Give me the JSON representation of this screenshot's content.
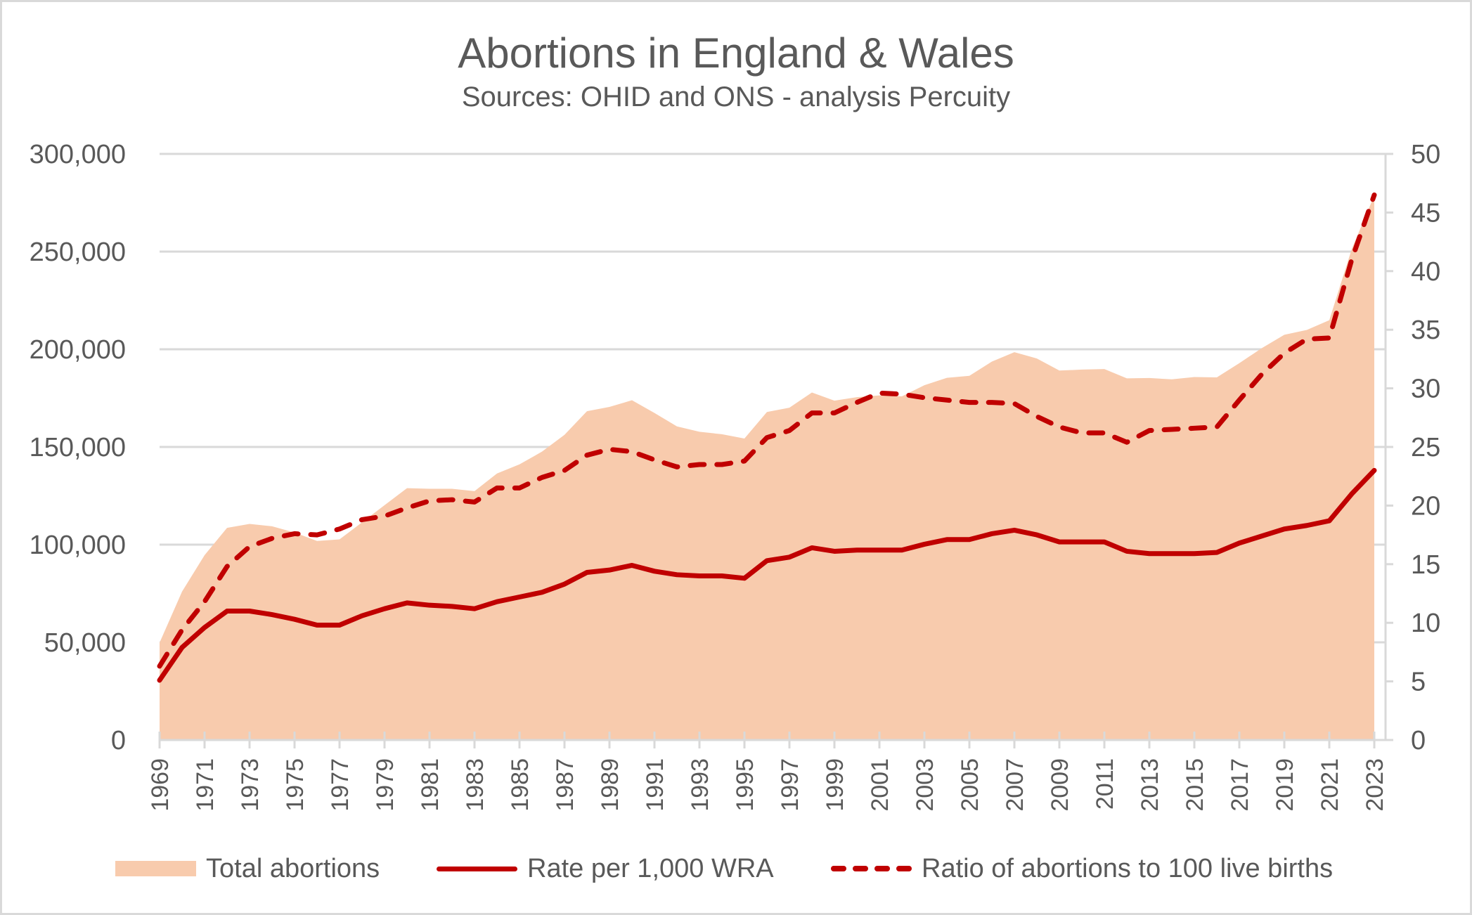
{
  "chart_data": {
    "type": "area+line",
    "title": "Abortions in England & Wales",
    "subtitle": "Sources: OHID and ONS - analysis Percuity",
    "x": [
      1969,
      1970,
      1971,
      1972,
      1973,
      1974,
      1975,
      1976,
      1977,
      1978,
      1979,
      1980,
      1981,
      1982,
      1983,
      1984,
      1985,
      1986,
      1987,
      1988,
      1989,
      1990,
      1991,
      1992,
      1993,
      1994,
      1995,
      1996,
      1997,
      1998,
      1999,
      2000,
      2001,
      2002,
      2003,
      2004,
      2005,
      2006,
      2007,
      2008,
      2009,
      2010,
      2011,
      2012,
      2013,
      2014,
      2015,
      2016,
      2017,
      2018,
      2019,
      2020,
      2021,
      2022,
      2023
    ],
    "x_tick_labels": [
      "1969",
      "1971",
      "1973",
      "1975",
      "1977",
      "1979",
      "1981",
      "1983",
      "1985",
      "1987",
      "1989",
      "1991",
      "1993",
      "1995",
      "1997",
      "1999",
      "2001",
      "2003",
      "2005",
      "2007",
      "2009",
      "2011",
      "2013",
      "2015",
      "2017",
      "2019",
      "2021",
      "2023"
    ],
    "y_left": {
      "range": [
        0,
        300000
      ],
      "ticks": [
        0,
        50000,
        100000,
        150000,
        200000,
        250000,
        300000
      ],
      "tick_labels": [
        "0",
        "50,000",
        "100,000",
        "150,000",
        "200,000",
        "250,000",
        "300,000"
      ],
      "grid": true
    },
    "y_right": {
      "range": [
        0,
        50
      ],
      "ticks": [
        0,
        5,
        10,
        15,
        20,
        25,
        30,
        35,
        40,
        45,
        50
      ],
      "tick_labels": [
        "0",
        "5",
        "10",
        "15",
        "20",
        "25",
        "30",
        "35",
        "40",
        "45",
        "50"
      ]
    },
    "legend_position": "bottom",
    "series": [
      {
        "name": "Total abortions",
        "kind": "area",
        "axis": "left",
        "color": "#F8CBAD",
        "values": [
          49800,
          76000,
          94600,
          108600,
          110600,
          109400,
          106200,
          101900,
          102700,
          111400,
          120200,
          128900,
          128600,
          128600,
          127400,
          136400,
          141100,
          147600,
          156200,
          168300,
          170500,
          173900,
          167400,
          160500,
          157800,
          156500,
          154300,
          167900,
          170100,
          177900,
          173700,
          175500,
          176400,
          175900,
          181600,
          185400,
          186400,
          193700,
          198500,
          195300,
          189100,
          189600,
          189900,
          185100,
          185300,
          184600,
          185800,
          185600,
          192900,
          200600,
          207400,
          209900,
          214900,
          251400,
          278700
        ]
      },
      {
        "name": "Rate per 1,000 WRA",
        "kind": "line",
        "axis": "right",
        "color": "#C00000",
        "dash": false,
        "values": [
          5.1,
          7.9,
          9.6,
          11.0,
          11.0,
          10.7,
          10.3,
          9.8,
          9.8,
          10.6,
          11.2,
          11.7,
          11.5,
          11.4,
          11.2,
          11.8,
          12.2,
          12.6,
          13.3,
          14.3,
          14.5,
          14.9,
          14.4,
          14.1,
          14.0,
          14.0,
          13.8,
          15.3,
          15.6,
          16.4,
          16.1,
          16.2,
          16.2,
          16.2,
          16.7,
          17.1,
          17.1,
          17.6,
          17.9,
          17.5,
          16.9,
          16.9,
          16.9,
          16.1,
          15.9,
          15.9,
          15.9,
          16.0,
          16.8,
          17.4,
          18.0,
          18.3,
          18.7,
          21.0,
          23.0
        ]
      },
      {
        "name": "Ratio of abortions to 100 live births",
        "kind": "line",
        "axis": "right",
        "color": "#C00000",
        "dash": true,
        "values": [
          6.3,
          9.4,
          11.8,
          14.8,
          16.5,
          17.2,
          17.6,
          17.5,
          18.0,
          18.8,
          19.1,
          19.8,
          20.4,
          20.5,
          20.3,
          21.5,
          21.5,
          22.4,
          23.0,
          24.3,
          24.8,
          24.6,
          23.9,
          23.3,
          23.5,
          23.5,
          23.8,
          25.8,
          26.4,
          27.9,
          27.9,
          28.8,
          29.6,
          29.5,
          29.2,
          29.0,
          28.8,
          28.8,
          28.7,
          27.6,
          26.7,
          26.2,
          26.2,
          25.4,
          26.4,
          26.5,
          26.6,
          26.7,
          29.0,
          31.2,
          33.0,
          34.2,
          34.3,
          41.0,
          46.5
        ]
      }
    ]
  },
  "legend": {
    "items": [
      {
        "label": "Total abortions",
        "swatch": "area"
      },
      {
        "label": "Rate per 1,000 WRA",
        "swatch": "solid-line"
      },
      {
        "label": "Ratio of abortions to 100 live births",
        "swatch": "dashed-line"
      }
    ]
  },
  "colors": {
    "area_fill": "#F8CBAD",
    "line": "#C00000",
    "grid": "#D9D9D9",
    "text": "#595959"
  }
}
